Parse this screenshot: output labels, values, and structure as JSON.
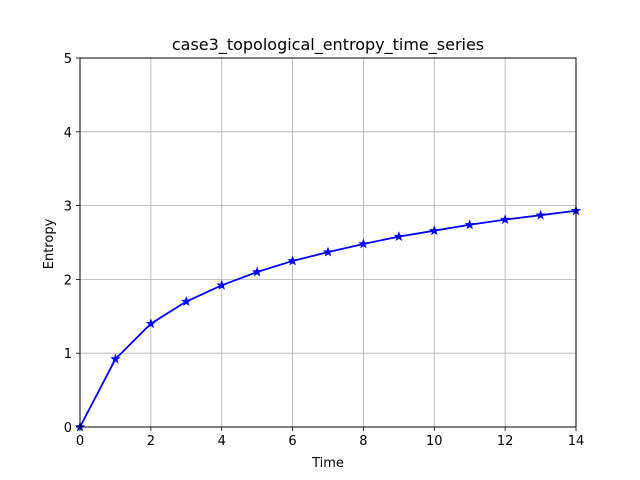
{
  "chart_data": {
    "type": "line",
    "title": "case3_topological_entropy_time_series",
    "xlabel": "Time",
    "ylabel": "Entropy",
    "xlim": [
      0,
      14
    ],
    "ylim": [
      0,
      5
    ],
    "xticks": [
      0,
      2,
      4,
      6,
      8,
      10,
      12,
      14
    ],
    "yticks": [
      0,
      1,
      2,
      3,
      4,
      5
    ],
    "grid": true,
    "series": [
      {
        "color": "#0000ff",
        "marker": "star",
        "x": [
          0,
          1,
          2,
          3,
          4,
          5,
          6,
          7,
          8,
          9,
          10,
          11,
          12,
          13,
          14
        ],
        "y": [
          0.0,
          0.92,
          1.4,
          1.7,
          1.92,
          2.1,
          2.25,
          2.37,
          2.48,
          2.58,
          2.66,
          2.74,
          2.81,
          2.87,
          2.93
        ]
      }
    ]
  }
}
